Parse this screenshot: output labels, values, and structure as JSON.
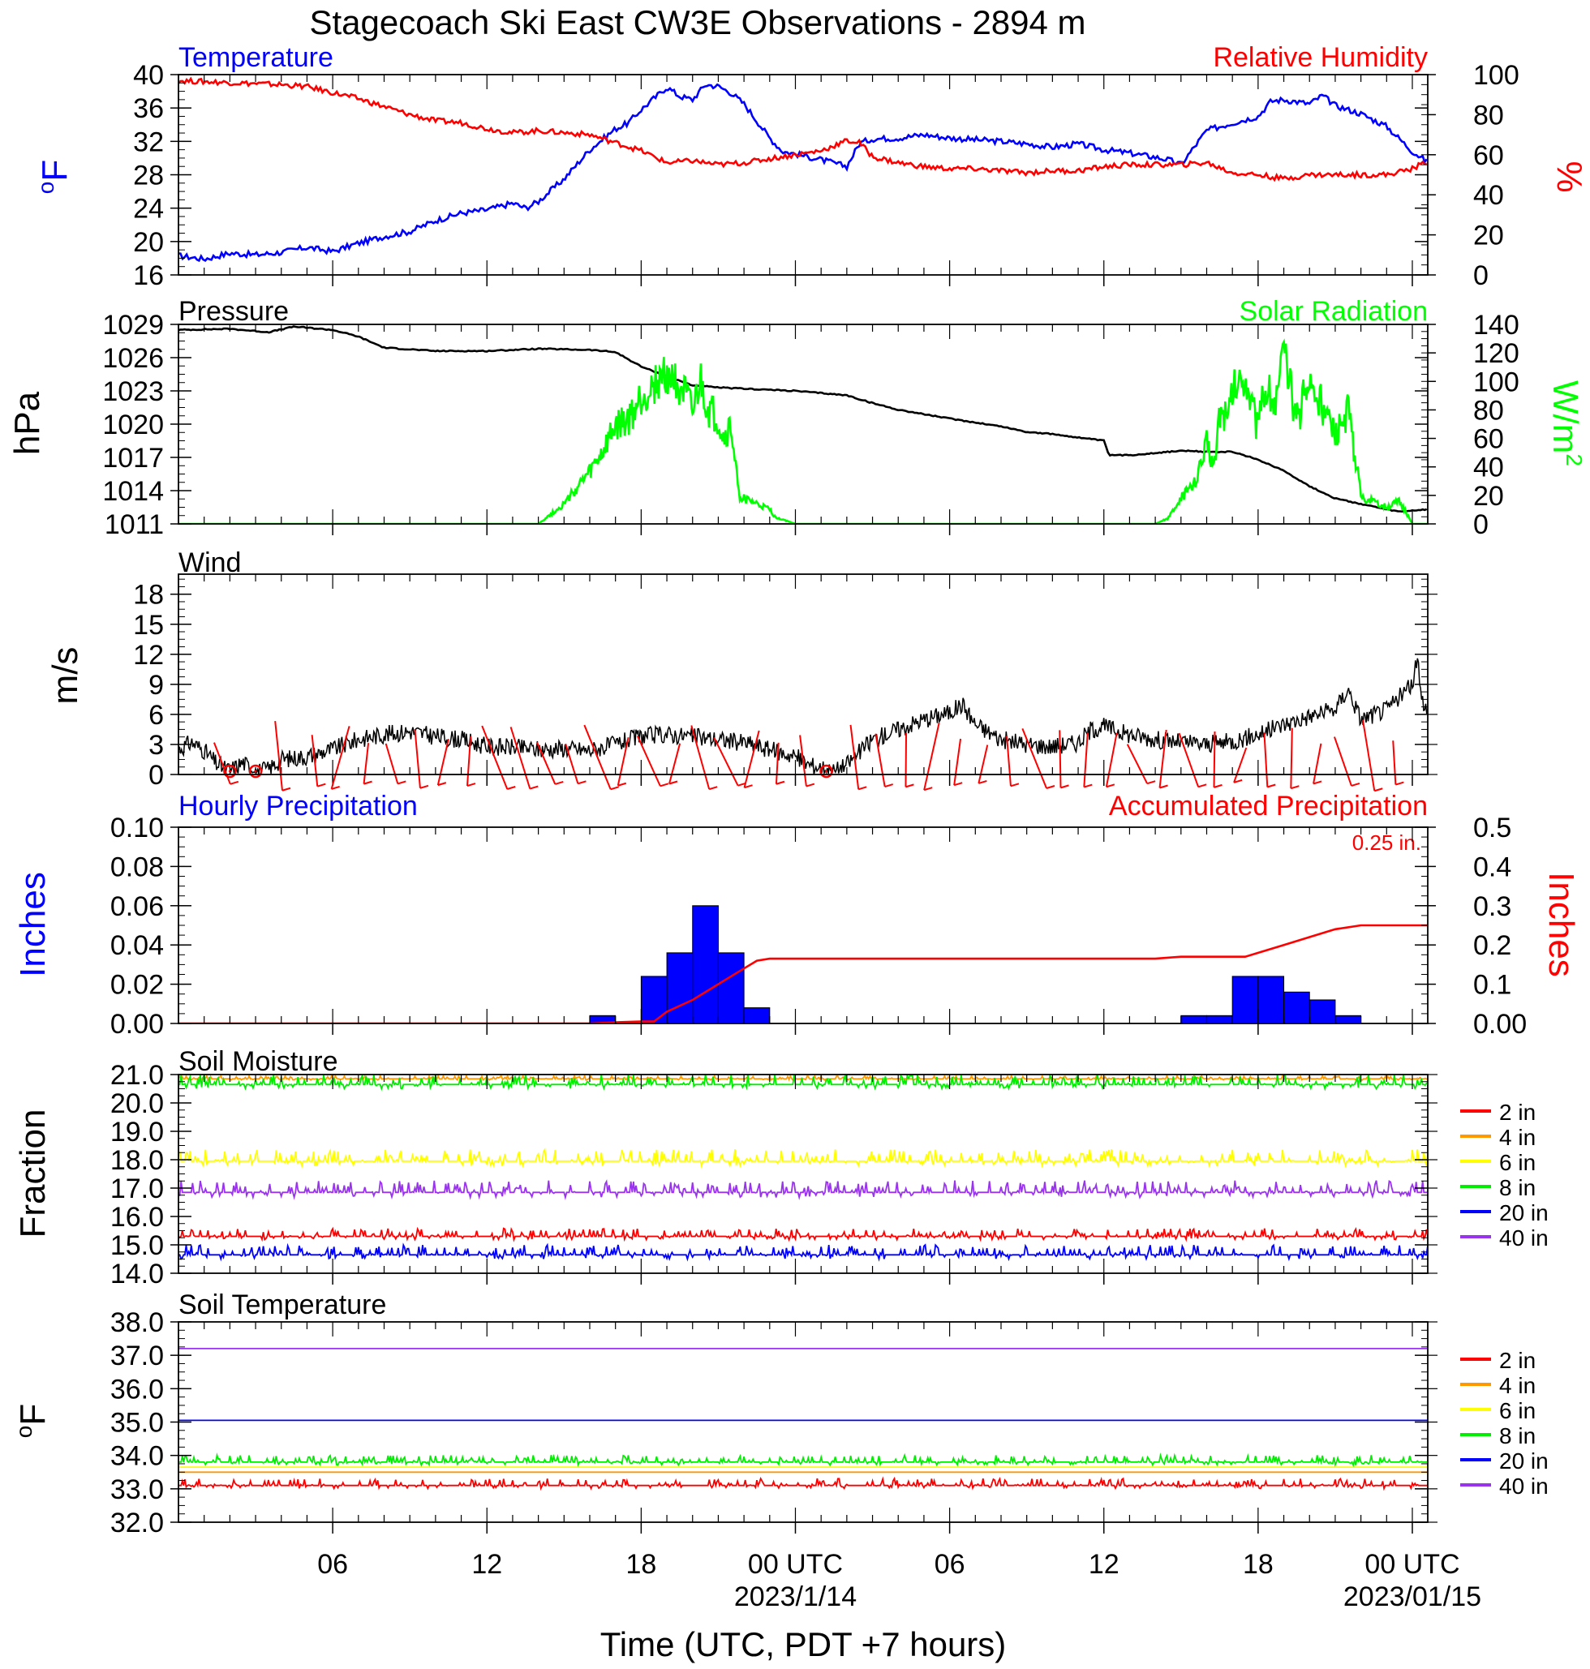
{
  "title": "Stagecoach Ski East CW3E Observations - 2894 m",
  "x_axis": {
    "label": "Time (UTC, PDT +7 hours)",
    "range_hours": [
      0,
      48.6
    ],
    "ticks": [
      {
        "hour": 6,
        "label": "06",
        "date": ""
      },
      {
        "hour": 12,
        "label": "12",
        "date": ""
      },
      {
        "hour": 18,
        "label": "18",
        "date": ""
      },
      {
        "hour": 24,
        "label": "00 UTC",
        "date": "2023/1/14"
      },
      {
        "hour": 30,
        "label": "06",
        "date": ""
      },
      {
        "hour": 36,
        "label": "12",
        "date": ""
      },
      {
        "hour": 42,
        "label": "18",
        "date": ""
      },
      {
        "hour": 48,
        "label": "00 UTC",
        "date": "2023/01/15"
      }
    ]
  },
  "soil_legend": [
    {
      "label": "2 in",
      "color": "#ff0000"
    },
    {
      "label": "4 in",
      "color": "#ff9900"
    },
    {
      "label": "6 in",
      "color": "#ffff00"
    },
    {
      "label": "8 in",
      "color": "#00ee00"
    },
    {
      "label": "20 in",
      "color": "#0000ff"
    },
    {
      "label": "40 in",
      "color": "#9933ee"
    }
  ],
  "chart_data": [
    {
      "type": "line",
      "panel": "temperature-rh",
      "left_title": "Temperature",
      "right_title": "Relative Humidity",
      "left_ylabel": "oF",
      "right_ylabel": "%",
      "left_ylim": [
        16,
        40
      ],
      "left_ticks": [
        "16",
        "20",
        "24",
        "28",
        "32",
        "36",
        "40"
      ],
      "right_ylim": [
        0,
        100
      ],
      "right_ticks": [
        "0",
        "20",
        "40",
        "60",
        "80",
        "100"
      ],
      "series": [
        {
          "name": "Temperature",
          "color": "#0000ff",
          "axis": "left",
          "x": [
            0,
            1,
            2,
            3,
            4,
            5,
            6,
            7,
            8,
            9,
            10,
            11,
            12,
            13,
            13.5,
            14,
            15,
            16,
            17,
            17.5,
            18,
            19,
            19.5,
            20,
            20.5,
            21,
            21.5,
            22,
            23,
            23.5,
            24,
            25,
            26,
            26.5,
            27,
            28,
            29,
            30,
            31,
            32,
            33,
            34,
            35,
            36,
            37,
            38,
            38.5,
            39,
            40,
            41,
            42,
            42.5,
            43,
            44,
            44.5,
            45,
            46,
            47,
            48,
            48.6
          ],
          "y": [
            18.3,
            17.9,
            18.6,
            18.4,
            18.7,
            19.3,
            18.8,
            19.8,
            20.6,
            21.2,
            22.5,
            23.4,
            23.8,
            24.6,
            24.0,
            24.8,
            27.5,
            31.0,
            33.5,
            34.2,
            35.8,
            38.5,
            37.4,
            37.0,
            38.8,
            38.6,
            37.8,
            36.5,
            32.4,
            30.8,
            30.5,
            29.8,
            29.0,
            31.8,
            32.3,
            32.4,
            32.8,
            32.4,
            32.2,
            32.0,
            31.7,
            31.3,
            31.7,
            31.0,
            30.6,
            30.1,
            29.8,
            29.2,
            33.3,
            34.2,
            35.0,
            36.8,
            37.0,
            36.5,
            37.5,
            36.3,
            35.3,
            33.8,
            30.8,
            29.5
          ]
        },
        {
          "name": "Relative Humidity",
          "color": "#ff0000",
          "axis": "right",
          "x": [
            0,
            2,
            4,
            5,
            6,
            7,
            8,
            9,
            10,
            11,
            12,
            13,
            14,
            15,
            16,
            17,
            18,
            19,
            20,
            21,
            22,
            23,
            24,
            25,
            26,
            26.5,
            27,
            28,
            29,
            30,
            31,
            32,
            33,
            34,
            35,
            36,
            37,
            38,
            39,
            40,
            41,
            42,
            43,
            44,
            45,
            46,
            47,
            48,
            48.6
          ],
          "y": [
            97,
            96,
            95,
            94,
            91,
            88,
            84,
            80,
            77,
            76,
            73,
            71,
            72,
            71,
            70,
            66,
            62,
            56,
            57,
            55,
            56,
            58,
            60,
            62,
            67,
            66,
            59,
            56,
            54,
            53,
            53,
            52,
            51,
            52,
            52,
            54,
            55,
            55,
            55,
            56,
            51,
            50,
            48,
            50,
            50,
            50,
            50,
            53,
            57
          ]
        }
      ]
    },
    {
      "type": "line",
      "panel": "pressure-solar",
      "left_title": "Pressure",
      "right_title": "Solar Radiation",
      "left_ylabel": "hPa",
      "right_ylabel": "W/m2",
      "left_ylim": [
        1011,
        1029
      ],
      "left_ticks": [
        "1011",
        "1014",
        "1017",
        "1020",
        "1023",
        "1026",
        "1029"
      ],
      "right_ylim": [
        0,
        140
      ],
      "right_ticks": [
        "0",
        "20",
        "40",
        "60",
        "80",
        "100",
        "120",
        "140"
      ],
      "series": [
        {
          "name": "Pressure",
          "color": "#000000",
          "axis": "left",
          "x": [
            0,
            2,
            3.5,
            4.5,
            6,
            7,
            8,
            10,
            12,
            14,
            16,
            17,
            18,
            19,
            20,
            21,
            22,
            24,
            26,
            27,
            28,
            30,
            32,
            33,
            34,
            35,
            36,
            36.2,
            37,
            38,
            39,
            40,
            41,
            42,
            43,
            44,
            45,
            46,
            47,
            47.5,
            48,
            48.6
          ],
          "y": [
            1028.5,
            1028.6,
            1028.3,
            1028.8,
            1028.5,
            1027.9,
            1026.9,
            1026.6,
            1026.6,
            1026.8,
            1026.7,
            1026.5,
            1025.2,
            1024.3,
            1023.5,
            1023.3,
            1023.2,
            1023.0,
            1022.6,
            1021.9,
            1021.3,
            1020.5,
            1019.8,
            1019.3,
            1019.1,
            1018.8,
            1018.5,
            1017.2,
            1017.2,
            1017.4,
            1017.6,
            1017.5,
            1017.5,
            1016.8,
            1015.8,
            1014.4,
            1013.3,
            1012.8,
            1012.3,
            1012.1,
            1012.2,
            1012.3
          ]
        },
        {
          "name": "Solar Radiation",
          "color": "#00ff00",
          "axis": "right",
          "x": [
            0,
            13.5,
            14,
            15,
            16,
            16.5,
            17,
            17.5,
            18,
            18.5,
            19,
            19.5,
            20,
            20.3,
            20.6,
            21,
            21.2,
            21.5,
            21.8,
            22,
            22.5,
            23,
            23.2,
            24,
            36,
            37,
            38,
            38.5,
            39,
            39.5,
            39.8,
            40,
            40.3,
            40.5,
            40.8,
            41,
            41.5,
            42,
            42.3,
            42.7,
            43,
            43.5,
            44,
            44.5,
            45,
            45.5,
            45.8,
            46,
            46.5,
            47,
            47.5,
            48,
            48.6
          ],
          "y": [
            0,
            0,
            0,
            14,
            36,
            50,
            68,
            72,
            88,
            98,
            105,
            98,
            76,
            100,
            80,
            72,
            60,
            68,
            20,
            18,
            14,
            10,
            5,
            0,
            0,
            0,
            0,
            4,
            18,
            28,
            42,
            58,
            40,
            82,
            70,
            95,
            105,
            66,
            98,
            85,
            122,
            72,
            100,
            82,
            60,
            78,
            44,
            20,
            15,
            12,
            16,
            0,
            0
          ]
        }
      ]
    },
    {
      "type": "line",
      "panel": "wind",
      "left_title": "Wind",
      "left_ylabel": "m/s",
      "left_ylim": [
        0,
        20
      ],
      "left_ticks": [
        "0",
        "3",
        "6",
        "9",
        "12",
        "15",
        "18"
      ],
      "calm_circles_hours": [
        2,
        3,
        25.2
      ],
      "barb_hours": [
        1.7,
        3.9,
        5.3,
        6.3,
        7.3,
        8.3,
        9.3,
        10.3,
        11.3,
        12.3,
        13.3,
        14.3,
        15.3,
        16.3,
        17.3,
        18.3,
        19.3,
        20.3,
        21.3,
        22.3,
        23.3,
        24.3,
        26.3,
        27.3,
        28.3,
        29.3,
        30.3,
        31.3,
        32.3,
        33.3,
        34.3,
        35.3,
        36.3,
        37.3,
        38.3,
        39.3,
        40.3,
        41.3,
        42.3,
        43.3,
        44.3,
        45.3,
        46.3,
        47.3
      ],
      "series": [
        {
          "name": "Wind",
          "color": "#000000",
          "axis": "left",
          "x": [
            0,
            0.5,
            1,
            1.5,
            2,
            2.5,
            3,
            3.5,
            4,
            5,
            6,
            7,
            8,
            9,
            10,
            11,
            12,
            13,
            14,
            15,
            16,
            17,
            18,
            19,
            20,
            21,
            22,
            23,
            24,
            24.5,
            25,
            25.5,
            26,
            27,
            28,
            29,
            30,
            30.5,
            31,
            32,
            33,
            34,
            35,
            35.5,
            36,
            37,
            38,
            39,
            40,
            41,
            42,
            43,
            44,
            45,
            45.5,
            46,
            47,
            48,
            48.2,
            48.4,
            48.6
          ],
          "y": [
            2.5,
            3.2,
            2.4,
            1.0,
            0.4,
            1.2,
            0.3,
            0.5,
            1.5,
            1.8,
            2.5,
            3.5,
            4.0,
            4.3,
            3.8,
            3.5,
            2.8,
            2.7,
            2.5,
            2.6,
            2.4,
            3.0,
            3.8,
            4.0,
            3.8,
            3.5,
            3.2,
            2.5,
            1.8,
            1.0,
            0.7,
            0.3,
            1.0,
            3.5,
            4.5,
            5.5,
            6.2,
            7.0,
            5.0,
            3.5,
            3.0,
            2.8,
            3.2,
            4.5,
            4.8,
            4.0,
            3.5,
            3.2,
            3.0,
            3.3,
            4.0,
            5.0,
            5.8,
            6.5,
            8.5,
            5.5,
            6.5,
            9.0,
            11.5,
            7.5,
            6.0
          ]
        }
      ]
    },
    {
      "type": "bar",
      "panel": "precipitation",
      "left_title": "Hourly Precipitation",
      "right_title": "Accumulated Precipitation",
      "total_label": "0.25 in.",
      "left_ylabel": "Inches",
      "right_ylabel": "Inches",
      "left_ylim": [
        0,
        0.1
      ],
      "left_ticks": [
        "0.00",
        "0.02",
        "0.04",
        "0.06",
        "0.08",
        "0.10"
      ],
      "right_ylim": [
        0,
        0.5
      ],
      "right_ticks": [
        "0.00",
        "0.1",
        "0.2",
        "0.3",
        "0.4",
        "0.5"
      ],
      "series": [
        {
          "name": "Hourly Precipitation",
          "color": "#0000ff",
          "axis": "left",
          "x": [
            16.5,
            17.5,
            18.5,
            19.5,
            20.5,
            21.5,
            22.5,
            23.5,
            39.5,
            40.5,
            41.5,
            42.5,
            43.5,
            44.5,
            45.5,
            46.5
          ],
          "y": [
            0.004,
            0.0,
            0.024,
            0.036,
            0.06,
            0.036,
            0.008,
            0.0,
            0.004,
            0.004,
            0.024,
            0.024,
            0.016,
            0.012,
            0.004,
            0.0
          ]
        },
        {
          "name": "Accumulated Precipitation",
          "color": "#ff0000",
          "axis": "right",
          "x": [
            0,
            16,
            17,
            18,
            18.5,
            19,
            20,
            21,
            22,
            22.5,
            23,
            24,
            38,
            39,
            40,
            41,
            41.5,
            42,
            43,
            44,
            45,
            46,
            48.6
          ],
          "y": [
            0,
            0,
            0.003,
            0.005,
            0.005,
            0.03,
            0.06,
            0.1,
            0.14,
            0.16,
            0.165,
            0.165,
            0.165,
            0.17,
            0.17,
            0.17,
            0.17,
            0.18,
            0.2,
            0.22,
            0.24,
            0.25,
            0.25
          ]
        }
      ]
    },
    {
      "type": "line",
      "panel": "soil-moisture",
      "left_title": "Soil Moisture",
      "left_ylabel": "Fraction",
      "left_ylim": [
        14,
        21
      ],
      "left_ticks": [
        "14.0",
        "15.0",
        "16.0",
        "17.0",
        "18.0",
        "19.0",
        "20.0",
        "21.0"
      ],
      "series": [
        {
          "name": "2 in",
          "color": "#ff0000",
          "baseline": 15.3,
          "noise": 0.2
        },
        {
          "name": "4 in",
          "color": "#ff9900",
          "baseline": 20.85,
          "noise": 0.08
        },
        {
          "name": "6 in",
          "color": "#ffff00",
          "baseline": 17.95,
          "noise": 0.3
        },
        {
          "name": "8 in",
          "color": "#00ee00",
          "baseline": 20.65,
          "noise": 0.25
        },
        {
          "name": "20 in",
          "color": "#0000ff",
          "baseline": 14.65,
          "noise": 0.25
        },
        {
          "name": "40 in",
          "color": "#9933ee",
          "baseline": 16.85,
          "noise": 0.3
        }
      ]
    },
    {
      "type": "line",
      "panel": "soil-temperature",
      "left_title": "Soil Temperature",
      "left_ylabel": "oF",
      "left_ylim": [
        32,
        38
      ],
      "left_ticks": [
        "32.0",
        "33.0",
        "34.0",
        "35.0",
        "36.0",
        "37.0",
        "38.0"
      ],
      "series": [
        {
          "name": "2 in",
          "color": "#ff0000",
          "baseline": 33.1,
          "noise": 0.15
        },
        {
          "name": "4 in",
          "color": "#ff9900",
          "baseline": 33.5,
          "noise": 0.0
        },
        {
          "name": "6 in",
          "color": "#ffff00",
          "baseline": 33.65,
          "noise": 0.0
        },
        {
          "name": "8 in",
          "color": "#00ee00",
          "baseline": 33.8,
          "noise": 0.15
        },
        {
          "name": "20 in",
          "color": "#0000ff",
          "baseline": 35.05,
          "noise": 0.0
        },
        {
          "name": "40 in",
          "color": "#9933ee",
          "baseline": 37.2,
          "noise": 0.0
        }
      ]
    }
  ]
}
